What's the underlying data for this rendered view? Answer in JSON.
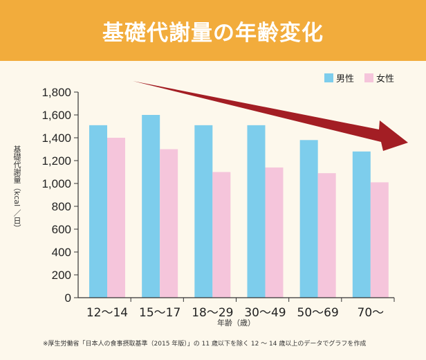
{
  "header": {
    "title": "基礎代謝量の年齢変化"
  },
  "colors": {
    "header_bg": "#f2ac3c",
    "male": "#7dcdec",
    "female": "#f5c5db",
    "arrow": "#a31e24"
  },
  "chart_data": {
    "type": "bar",
    "title": "基礎代謝量の年齢変化",
    "categories": [
      "12～14",
      "15～17",
      "18～29",
      "30～49",
      "50～69",
      "70～"
    ],
    "series": [
      {
        "name": "男性",
        "values": [
          1510,
          1600,
          1510,
          1510,
          1380,
          1280
        ]
      },
      {
        "name": "女性",
        "values": [
          1400,
          1300,
          1100,
          1140,
          1090,
          1010
        ]
      }
    ],
    "ylabel": "基礎代謝量（kcal ／日）",
    "xlabel": "年齢（歳）",
    "ylim": [
      0,
      1800
    ],
    "yticks": [
      "0",
      "200",
      "400",
      "600",
      "800",
      "1,000",
      "1,200",
      "1,400",
      "1,600",
      "1,800"
    ],
    "grid": false,
    "legend_position": "top-right",
    "annotation": "decreasing trend arrow"
  },
  "footnote": "※厚生労働省「日本人の食事摂取基準（2015 年版）」の 11 歳以下を除く 12 ～ 14 歳以上のデータでグラフを作成"
}
